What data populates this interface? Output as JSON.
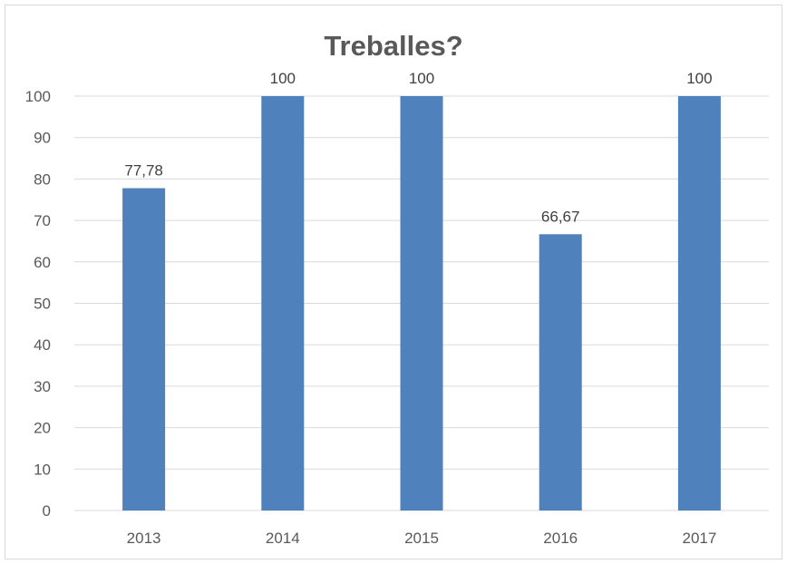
{
  "chart_data": {
    "type": "bar",
    "title": "Treballes?",
    "categories": [
      "2013",
      "2014",
      "2015",
      "2016",
      "2017"
    ],
    "values": [
      77.78,
      100,
      100,
      66.67,
      100
    ],
    "data_labels": [
      "77,78",
      "100",
      "100",
      "66,67",
      "100"
    ],
    "xlabel": "",
    "ylabel": "",
    "ylim": [
      0,
      100
    ],
    "yticks": [
      0,
      10,
      20,
      30,
      40,
      50,
      60,
      70,
      80,
      90,
      100
    ],
    "grid": true,
    "legend": "none",
    "bar_color": "#4f81bd",
    "grid_color": "#d9d9d9"
  }
}
